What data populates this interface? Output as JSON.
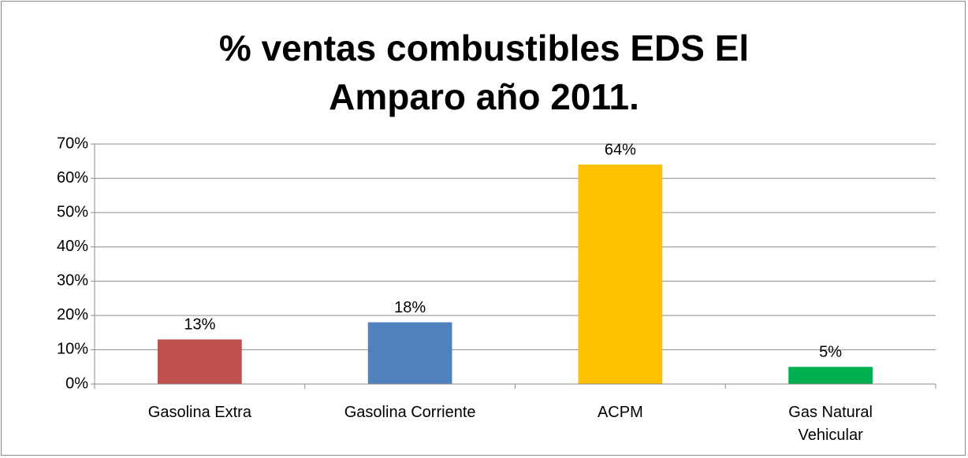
{
  "chart_data": {
    "type": "bar",
    "title": "% ventas combustibles EDS El Amparo año 2011.",
    "categories": [
      "Gasolina Extra",
      "Gasolina Corriente",
      "ACPM",
      "Gas Natural Vehicular"
    ],
    "values": [
      13,
      18,
      64,
      5
    ],
    "value_labels": [
      "13%",
      "18%",
      "64%",
      "5%"
    ],
    "colors": [
      "#c0504d",
      "#4f81bd",
      "#ffc000",
      "#00b050"
    ],
    "ylim": [
      0,
      70
    ],
    "yticks": [
      {
        "value": 0,
        "label": "0%"
      },
      {
        "value": 10,
        "label": "10%"
      },
      {
        "value": 20,
        "label": "20%"
      },
      {
        "value": 30,
        "label": "30%"
      },
      {
        "value": 40,
        "label": "40%"
      },
      {
        "value": 50,
        "label": "50%"
      },
      {
        "value": 60,
        "label": "60%"
      },
      {
        "value": 70,
        "label": "70%"
      }
    ],
    "grid": true
  }
}
